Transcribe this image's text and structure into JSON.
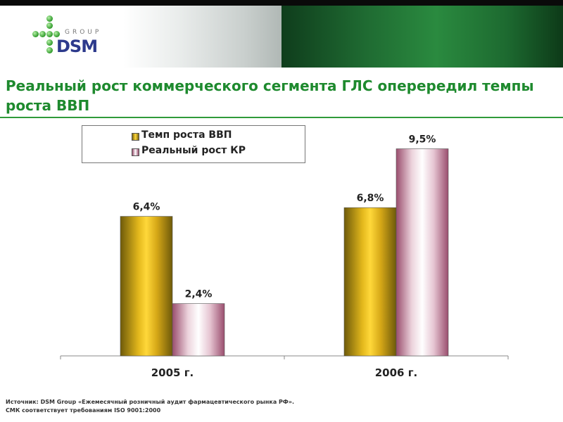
{
  "header": {
    "logo_group_text": "GROUP",
    "logo_text": "DSM",
    "brand_color": "#1e8a2e"
  },
  "title": "Реальный рост коммерческого сегмента ГЛС оперередил темпы роста ВВП",
  "chart_data": {
    "type": "bar",
    "categories": [
      "2005 г.",
      "2006 г."
    ],
    "series": [
      {
        "name": "Темп роста ВВП",
        "values": [
          6.4,
          6.8
        ],
        "labels": [
          "6,4%",
          "6,8%"
        ],
        "color": "#e0b21a"
      },
      {
        "name": "Реальный рост КР",
        "values": [
          2.4,
          9.5
        ],
        "labels": [
          "2,4%",
          "9,5%"
        ],
        "color": "#b0607f"
      }
    ],
    "ylim": [
      0,
      10
    ],
    "grid": false,
    "legend_position": "top-left"
  },
  "footer": {
    "line1": "Источник: DSM Group «Ежемесячный розничный аудит фармацевтического рынка РФ».",
    "line2": "СМК соответствует требованиям ISO 9001:2000"
  }
}
